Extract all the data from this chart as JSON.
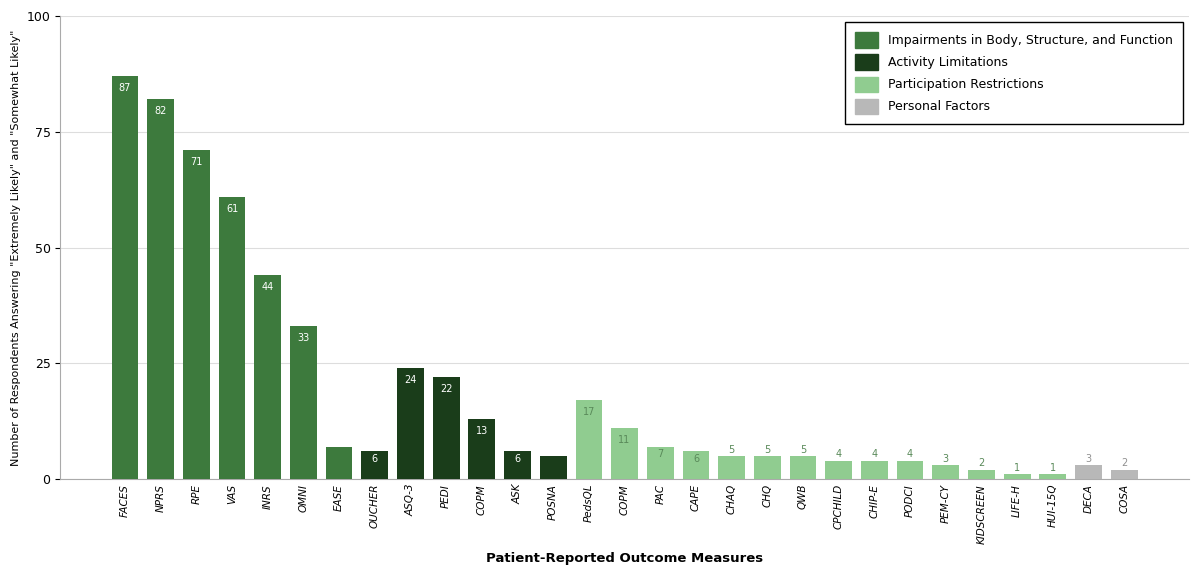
{
  "categories": [
    "FACES",
    "NPRS",
    "RPE",
    "VAS",
    "INRS",
    "OMNI",
    "EASE",
    "OUCHER",
    "ASQ-3",
    "PEDI",
    "COPM",
    "ASK",
    "POSNA",
    "PedsQL",
    "COPM",
    "PAC",
    "CAPE",
    "CHAQ",
    "CHQ",
    "QWB",
    "CPCHILD",
    "CHIP-E",
    "PODCI",
    "PEM-CY",
    "KIDSCREEN",
    "LIFE-H",
    "HUI-15Q",
    "DECA",
    "COSA"
  ],
  "values": [
    87,
    82,
    71,
    61,
    44,
    33,
    7,
    6,
    24,
    22,
    13,
    6,
    5,
    17,
    11,
    7,
    6,
    5,
    5,
    5,
    4,
    4,
    4,
    3,
    2,
    1,
    1,
    3,
    2
  ],
  "colors": [
    "#3d7a3d",
    "#3d7a3d",
    "#3d7a3d",
    "#3d7a3d",
    "#3d7a3d",
    "#3d7a3d",
    "#3d7a3d",
    "#1a3d1a",
    "#1a3d1a",
    "#1a3d1a",
    "#1a3d1a",
    "#1a3d1a",
    "#1a3d1a",
    "#90cc90",
    "#90cc90",
    "#90cc90",
    "#90cc90",
    "#90cc90",
    "#90cc90",
    "#90cc90",
    "#90cc90",
    "#90cc90",
    "#90cc90",
    "#90cc90",
    "#90cc90",
    "#90cc90",
    "#90cc90",
    "#b8b8b8",
    "#b8b8b8"
  ],
  "label_colors": [
    "white",
    "white",
    "white",
    "white",
    "white",
    "white",
    "#3d7a3d",
    "white",
    "white",
    "white",
    "white",
    "white",
    "white",
    "#5a8a5a",
    "#5a8a5a",
    "#5a8a5a",
    "#5a8a5a",
    "#5a8a5a",
    "#5a8a5a",
    "#5a8a5a",
    "#5a8a5a",
    "#5a8a5a",
    "#5a8a5a",
    "#5a8a5a",
    "#5a8a5a",
    "#5a8a5a",
    "#5a8a5a",
    "#909090",
    "#909090"
  ],
  "ylabel": "Number of Respondents Answering \"Extremely Likely\" and \"Somewhat Likely\"",
  "xlabel": "Patient-Reported Outcome Measures",
  "ylim": [
    0,
    100
  ],
  "yticks": [
    0,
    25,
    50,
    75,
    100
  ],
  "legend_labels": [
    "Impairments in Body, Structure, and Function",
    "Activity Limitations",
    "Participation Restrictions",
    "Personal Factors"
  ],
  "legend_colors": [
    "#3d7a3d",
    "#1a3d1a",
    "#90cc90",
    "#b8b8b8"
  ],
  "background_color": "#ffffff",
  "grid_color": "#dddddd"
}
